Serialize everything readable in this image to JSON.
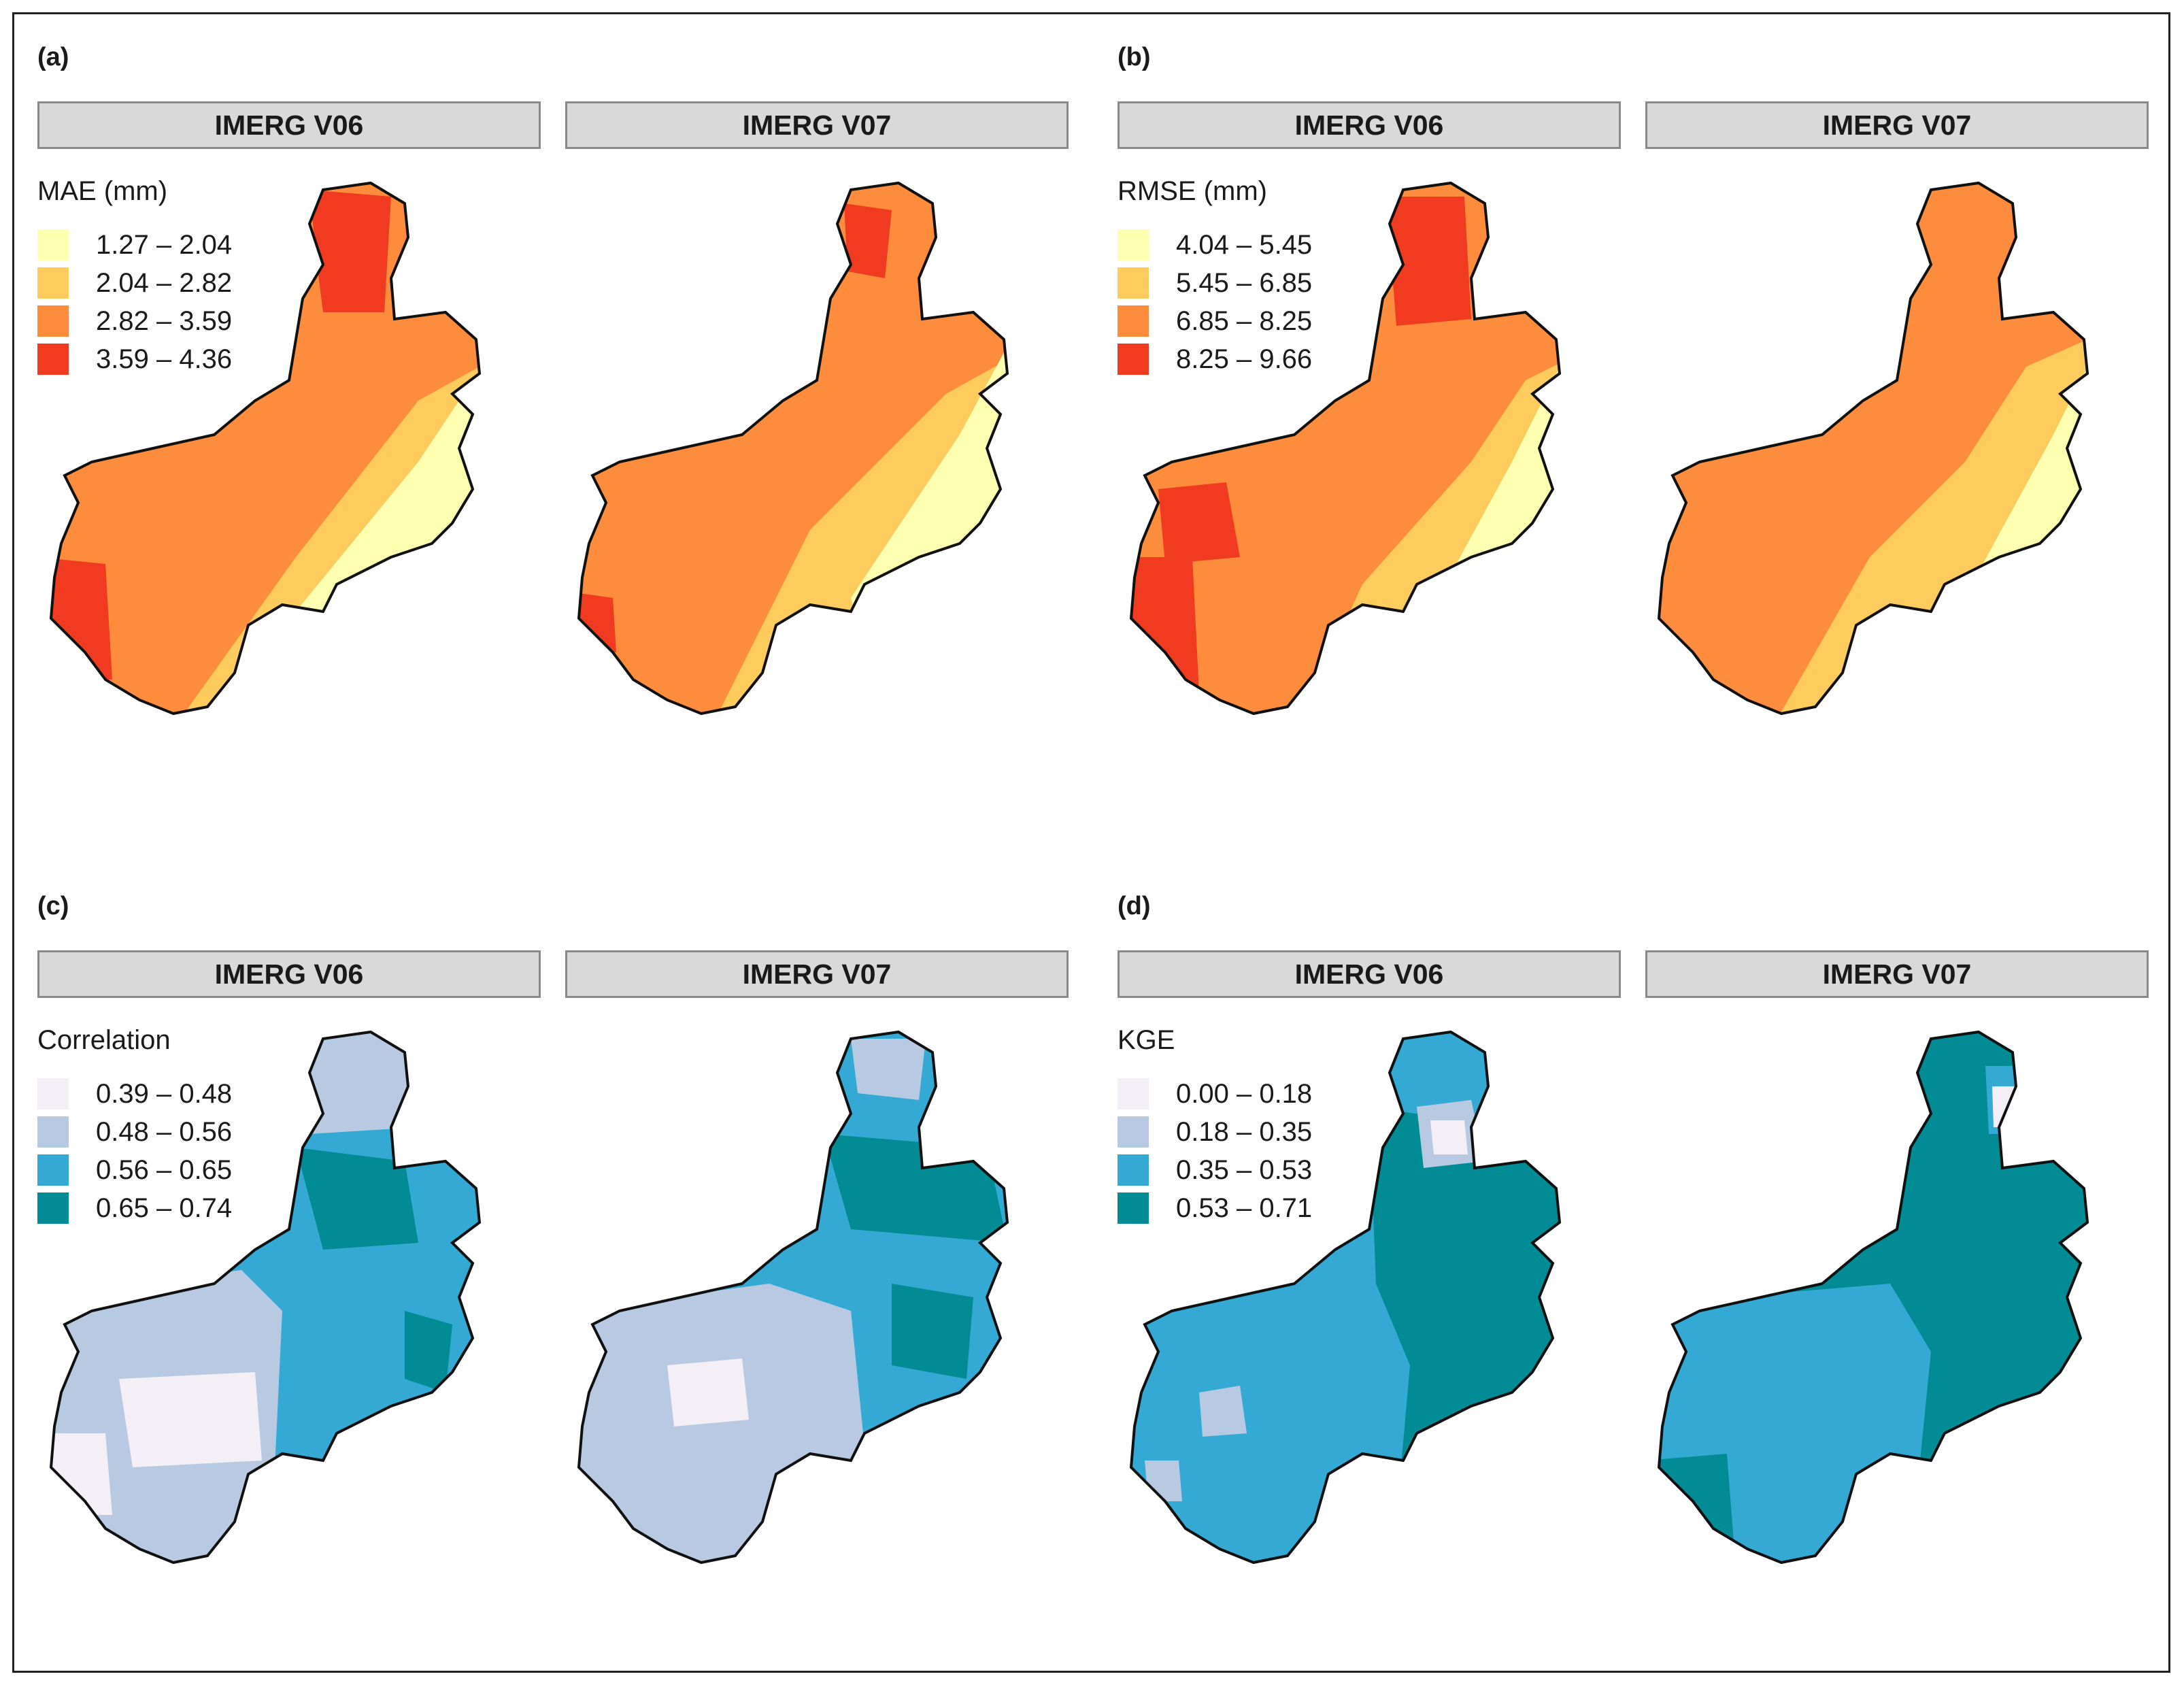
{
  "strip_labels": {
    "v06": "IMERG V06",
    "v07": "IMERG V07"
  },
  "panels": {
    "a": {
      "label": "(a)",
      "legend_title": "MAE (mm)",
      "legend": [
        {
          "text": "1.27 – 2.04",
          "color": "#ffffb2"
        },
        {
          "text": "2.04 – 2.82",
          "color": "#fecc5c"
        },
        {
          "text": "2.82 – 3.59",
          "color": "#fd8d3c"
        },
        {
          "text": "3.59 – 4.36",
          "color": "#f03b20"
        }
      ]
    },
    "b": {
      "label": "(b)",
      "legend_title": "RMSE (mm)",
      "legend": [
        {
          "text": "4.04 – 5.45",
          "color": "#ffffb2"
        },
        {
          "text": "5.45 – 6.85",
          "color": "#fecc5c"
        },
        {
          "text": "6.85 – 8.25",
          "color": "#fd8d3c"
        },
        {
          "text": "8.25 – 9.66",
          "color": "#f03b20"
        }
      ]
    },
    "c": {
      "label": "(c)",
      "legend_title": "Correlation",
      "legend": [
        {
          "text": "0.39 – 0.48",
          "color": "#f4eef7"
        },
        {
          "text": "0.48 – 0.56",
          "color": "#b7cae2"
        },
        {
          "text": "0.56 – 0.65",
          "color": "#33a9d4"
        },
        {
          "text": "0.65 – 0.74",
          "color": "#008b95"
        }
      ]
    },
    "d": {
      "label": "(d)",
      "legend_title": "KGE",
      "legend": [
        {
          "text": "0.00 – 0.18",
          "color": "#f4eef7"
        },
        {
          "text": "0.18 – 0.35",
          "color": "#b7cae2"
        },
        {
          "text": "0.35 – 0.53",
          "color": "#33a9d4"
        },
        {
          "text": "0.53 – 0.71",
          "color": "#008b95"
        }
      ]
    }
  }
}
